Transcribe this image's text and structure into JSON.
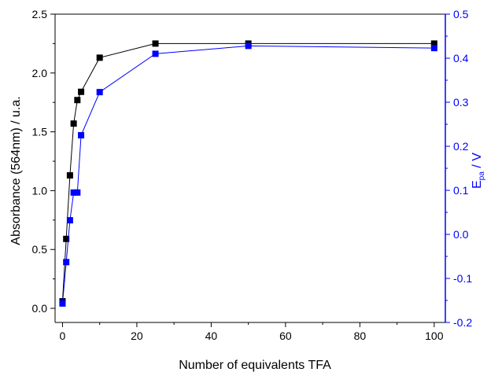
{
  "chart_data": {
    "type": "scatter",
    "xlabel": "Number of equivalents TFA",
    "ylabel_left": "Absorbance (564nm) / u.a.",
    "ylabel_right": {
      "main": "E",
      "subscript": "pa",
      "suffix": " / V"
    },
    "xlim": [
      -2,
      103
    ],
    "ylim_left": [
      -0.12,
      2.5
    ],
    "ylim_right": [
      -0.2,
      0.5
    ],
    "x_ticks": [
      0,
      20,
      40,
      60,
      80,
      100
    ],
    "x_tick_labels": [
      "0",
      "20",
      "40",
      "60",
      "80",
      "100"
    ],
    "y_left_ticks": [
      0.0,
      0.5,
      1.0,
      1.5,
      2.0,
      2.5
    ],
    "y_left_tick_labels": [
      "0.0",
      "0.5",
      "1.0",
      "1.5",
      "2.0",
      "2.5"
    ],
    "y_right_ticks": [
      -0.2,
      -0.1,
      0.0,
      0.1,
      0.2,
      0.3,
      0.4,
      0.5
    ],
    "y_right_tick_labels": [
      "-0.2",
      "-0.1",
      "0.0",
      "0.1",
      "0.2",
      "0.3",
      "0.4",
      "0.5"
    ],
    "grid": false,
    "legend": "none",
    "series": [
      {
        "axis": "left",
        "color": "#000000",
        "marker": "square",
        "x": [
          0,
          1,
          2,
          3,
          4,
          5,
          10,
          25,
          50,
          100
        ],
        "y": [
          0.06,
          0.59,
          1.13,
          1.57,
          1.77,
          1.84,
          2.13,
          2.25,
          2.25,
          2.25
        ]
      },
      {
        "axis": "right",
        "color": "#0000ff",
        "marker": "square",
        "x": [
          0,
          1,
          2,
          3,
          4,
          5,
          10,
          25,
          50,
          100
        ],
        "y": [
          -0.157,
          -0.063,
          0.032,
          0.095,
          0.095,
          0.225,
          0.323,
          0.41,
          0.428,
          0.423
        ]
      }
    ]
  }
}
